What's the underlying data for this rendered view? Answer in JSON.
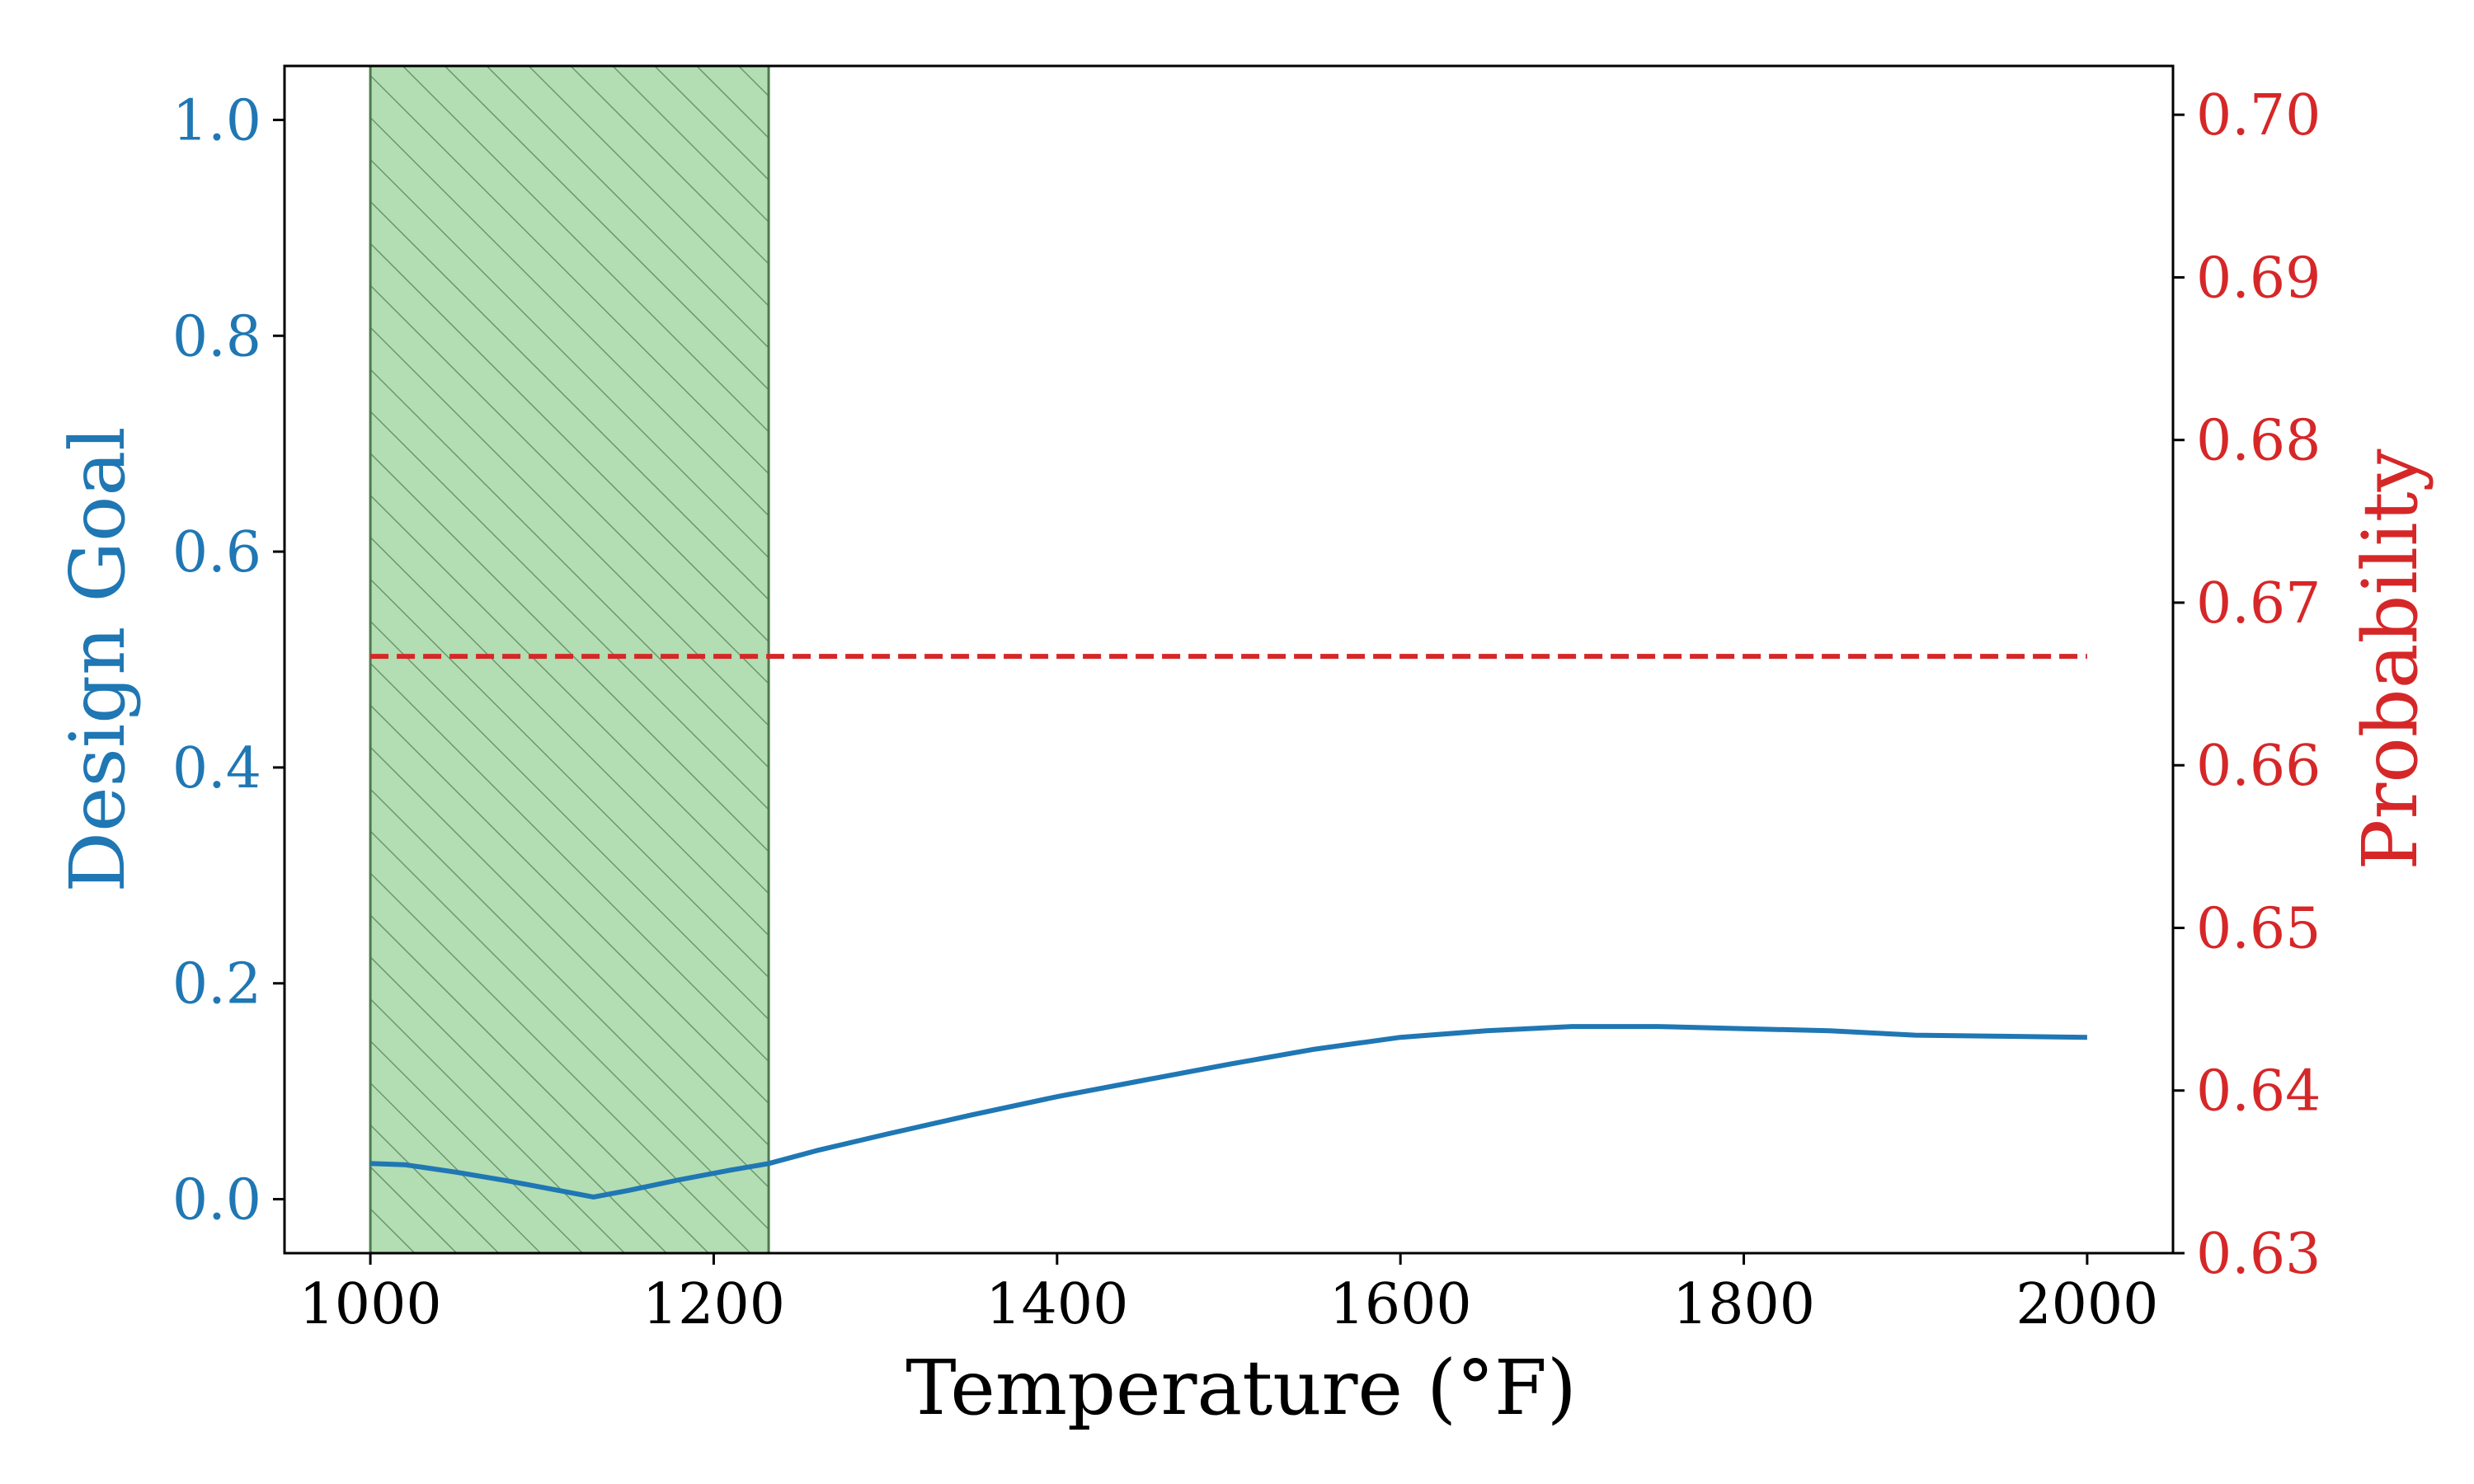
{
  "chart_data": {
    "type": "line",
    "title": "",
    "xlabel": "Temperature (°F)",
    "ylabel_left": "Design Goal",
    "ylabel_right": "Probability",
    "xlim": [
      950,
      2050
    ],
    "ylim_left": [
      -0.05,
      1.05
    ],
    "ylim_right": [
      0.63,
      0.703
    ],
    "x_ticks": [
      "1000",
      "1200",
      "1400",
      "1600",
      "1800",
      "2000"
    ],
    "x_tick_values": [
      1000,
      1200,
      1400,
      1600,
      1800,
      2000
    ],
    "y_left_ticks": [
      "0.0",
      "0.2",
      "0.4",
      "0.6",
      "0.8",
      "1.0"
    ],
    "y_left_tick_values": [
      0.0,
      0.2,
      0.4,
      0.6,
      0.8,
      1.0
    ],
    "y_right_ticks": [
      "0.63",
      "0.64",
      "0.65",
      "0.66",
      "0.67",
      "0.68",
      "0.69",
      "0.70"
    ],
    "y_right_tick_values": [
      0.63,
      0.64,
      0.65,
      0.66,
      0.67,
      0.68,
      0.69,
      0.7
    ],
    "shaded_region": {
      "x_start": 1000,
      "x_end": 1232,
      "color": "#2ca02c",
      "hatch": "diagonal"
    },
    "grid": false,
    "series": [
      {
        "axis": "left",
        "style": "solid",
        "color": "#1f77b4",
        "x": [
          1000,
          1020,
          1050,
          1080,
          1110,
          1130,
          1150,
          1180,
          1210,
          1232,
          1260,
          1300,
          1350,
          1400,
          1450,
          1500,
          1550,
          1600,
          1650,
          1700,
          1750,
          1800,
          1850,
          1900,
          1950,
          2000
        ],
        "y": [
          0.033,
          0.032,
          0.025,
          0.017,
          0.008,
          0.002,
          0.008,
          0.018,
          0.027,
          0.033,
          0.045,
          0.06,
          0.078,
          0.095,
          0.11,
          0.125,
          0.139,
          0.15,
          0.156,
          0.16,
          0.16,
          0.158,
          0.156,
          0.152,
          0.151,
          0.15
        ]
      },
      {
        "axis": "right",
        "style": "dashed",
        "color": "#d62728",
        "x": [
          1000,
          2000
        ],
        "y": [
          0.6667,
          0.6667
        ]
      }
    ],
    "colors": {
      "left_axis": "#1f77b4",
      "right_axis": "#d62728",
      "x_axis": "#000000"
    }
  }
}
